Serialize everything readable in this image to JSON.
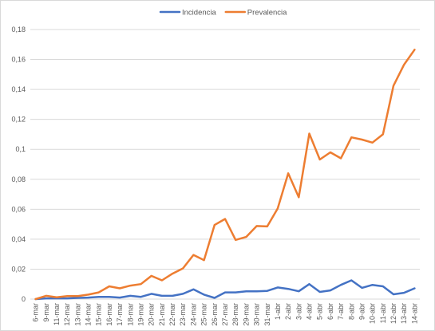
{
  "chart_data": {
    "type": "line",
    "title": "",
    "xlabel": "",
    "ylabel": "",
    "ylim": [
      0,
      0.18
    ],
    "yticks": [
      "0",
      "0,02",
      "0,04",
      "0,06",
      "0,08",
      "0,1",
      "0,12",
      "0,14",
      "0,16",
      "0,18"
    ],
    "grid": true,
    "legend_position": "top",
    "categories": [
      "6-mar",
      "9-mar",
      "11-mar",
      "12-mar",
      "13-mar",
      "14-mar",
      "15-mar",
      "16-mar",
      "17-mar",
      "18-mar",
      "19-mar",
      "20-mar",
      "21-mar",
      "22-mar",
      "23-mar",
      "24-mar",
      "25-mar",
      "26-mar",
      "27-mar",
      "28-mar",
      "29-mar",
      "30-mar",
      "31-mar",
      "1-abr",
      "2-abr",
      "3-abr",
      "4-abr",
      "5-abr",
      "6-abr",
      "7-abr",
      "8-abr",
      "9-abr",
      "10-abr",
      "11-abr",
      "12-abr",
      "13-abr",
      "14-abr"
    ],
    "series": [
      {
        "name": "Incidencia",
        "color": "#4472c4",
        "values": [
          0.0,
          0.0005,
          0.0005,
          0.0005,
          0.0008,
          0.001,
          0.0015,
          0.0015,
          0.001,
          0.0022,
          0.0015,
          0.0035,
          0.0022,
          0.0022,
          0.0035,
          0.0065,
          0.003,
          0.0008,
          0.0045,
          0.0045,
          0.0052,
          0.0052,
          0.0055,
          0.0078,
          0.0068,
          0.0052,
          0.01,
          0.0048,
          0.0058,
          0.0095,
          0.0125,
          0.0075,
          0.0095,
          0.0085,
          0.0032,
          0.0042,
          0.0072
        ]
      },
      {
        "name": "Prevalencia",
        "color": "#ed7d31",
        "values": [
          0.0,
          0.0022,
          0.0012,
          0.002,
          0.002,
          0.003,
          0.0045,
          0.0085,
          0.0072,
          0.009,
          0.01,
          0.0155,
          0.0125,
          0.017,
          0.0205,
          0.0295,
          0.026,
          0.0495,
          0.0535,
          0.0395,
          0.0415,
          0.0488,
          0.0485,
          0.0605,
          0.084,
          0.068,
          0.1105,
          0.0932,
          0.098,
          0.094,
          0.108,
          0.1065,
          0.1045,
          0.11,
          0.1425,
          0.1565,
          0.1665
        ]
      }
    ]
  }
}
